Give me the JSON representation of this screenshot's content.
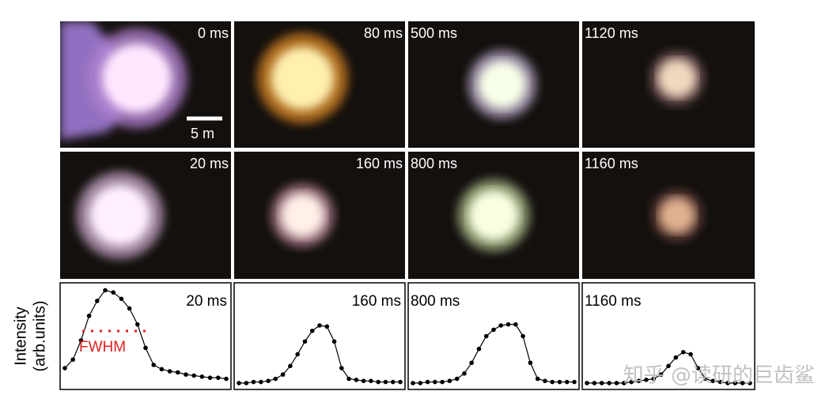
{
  "panels": [
    {
      "label": "0 ms"
    },
    {
      "label": "80 ms"
    },
    {
      "label": "500 ms"
    },
    {
      "label": "1120 ms"
    },
    {
      "label": "20 ms"
    },
    {
      "label": "160 ms"
    },
    {
      "label": "800 ms"
    },
    {
      "label": "1160 ms"
    }
  ],
  "scale_bar": "5 m",
  "watermark": "知乎 @读研的巨齿鲨",
  "chart_data": [
    {
      "type": "line",
      "title": "20 ms",
      "ylabel": [
        "Intensity",
        "(arb.units)"
      ],
      "annotation": "FWHM",
      "color": "#000000",
      "ylim": [
        0,
        1
      ],
      "values": [
        0.2,
        0.28,
        0.46,
        0.69,
        0.83,
        0.93,
        0.91,
        0.85,
        0.76,
        0.61,
        0.39,
        0.23,
        0.19,
        0.17,
        0.16,
        0.14,
        0.13,
        0.12,
        0.11,
        0.11,
        0.1
      ]
    },
    {
      "type": "line",
      "title": "160 ms",
      "color": "#000000",
      "ylim": [
        0,
        1
      ],
      "values": [
        0.06,
        0.06,
        0.07,
        0.07,
        0.08,
        0.1,
        0.14,
        0.22,
        0.33,
        0.45,
        0.55,
        0.6,
        0.59,
        0.45,
        0.2,
        0.1,
        0.09,
        0.08,
        0.08,
        0.07,
        0.07,
        0.07,
        0.07
      ]
    },
    {
      "type": "line",
      "title": "800 ms",
      "color": "#000000",
      "ylim": [
        0,
        1
      ],
      "values": [
        0.06,
        0.06,
        0.07,
        0.07,
        0.07,
        0.08,
        0.1,
        0.15,
        0.25,
        0.38,
        0.5,
        0.56,
        0.6,
        0.61,
        0.61,
        0.5,
        0.25,
        0.1,
        0.08,
        0.07,
        0.07,
        0.07,
        0.07
      ]
    },
    {
      "type": "line",
      "title": "1160 ms",
      "color": "#000000",
      "ylim": [
        0,
        1
      ],
      "values": [
        0.06,
        0.06,
        0.06,
        0.06,
        0.06,
        0.06,
        0.07,
        0.08,
        0.09,
        0.1,
        0.14,
        0.22,
        0.3,
        0.35,
        0.33,
        0.2,
        0.1,
        0.08,
        0.07,
        0.06,
        0.06,
        0.06,
        0.06
      ]
    }
  ]
}
